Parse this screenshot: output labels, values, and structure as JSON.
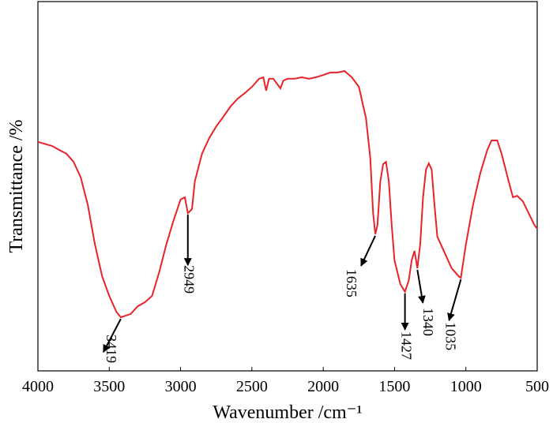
{
  "chart_data": {
    "type": "line",
    "x_label": "Wavenumber /cm⁻¹",
    "y_label": "Transmittance /%",
    "x": [
      4000,
      3900,
      3850,
      3800,
      3750,
      3700,
      3650,
      3600,
      3550,
      3500,
      3450,
      3419,
      3350,
      3300,
      3250,
      3200,
      3150,
      3100,
      3050,
      3000,
      2970,
      2949,
      2920,
      2900,
      2850,
      2800,
      2750,
      2700,
      2650,
      2600,
      2550,
      2500,
      2450,
      2420,
      2400,
      2380,
      2350,
      2300,
      2280,
      2250,
      2200,
      2150,
      2100,
      2050,
      2000,
      1950,
      1900,
      1850,
      1800,
      1750,
      1700,
      1670,
      1650,
      1635,
      1620,
      1600,
      1580,
      1560,
      1540,
      1520,
      1500,
      1460,
      1427,
      1400,
      1380,
      1360,
      1340,
      1320,
      1300,
      1280,
      1260,
      1240,
      1220,
      1200,
      1150,
      1100,
      1050,
      1035,
      1000,
      950,
      900,
      850,
      820,
      780,
      750,
      700,
      670,
      640,
      600,
      560,
      520,
      500
    ],
    "values": [
      62.0,
      60.9,
      59.8,
      58.8,
      56.6,
      52.4,
      44.9,
      34.2,
      25.6,
      20.3,
      16.0,
      14.5,
      15.4,
      17.5,
      18.6,
      20.3,
      26.7,
      34.2,
      40.6,
      46.4,
      47.0,
      42.7,
      43.8,
      51.3,
      58.8,
      63.0,
      66.2,
      68.8,
      71.6,
      73.7,
      75.2,
      76.9,
      79.1,
      79.5,
      75.9,
      79.1,
      79.1,
      76.5,
      78.6,
      79.1,
      79.1,
      79.5,
      79.1,
      79.5,
      80.1,
      80.8,
      80.8,
      81.2,
      79.5,
      76.9,
      68.4,
      57.7,
      42.7,
      37.0,
      39.5,
      51.3,
      56.0,
      56.6,
      51.3,
      39.5,
      29.9,
      23.5,
      21.4,
      24.6,
      29.9,
      32.5,
      27.8,
      34.2,
      47.0,
      54.5,
      56.2,
      54.5,
      44.9,
      36.3,
      32.1,
      27.8,
      25.6,
      25.2,
      34.2,
      44.9,
      53.4,
      59.8,
      62.4,
      62.4,
      58.8,
      51.3,
      47.0,
      47.4,
      45.9,
      42.7,
      39.5,
      38.5
    ],
    "color": "#e8232a",
    "xlim": [
      4000,
      500
    ],
    "xticks": [
      4000,
      3500,
      3000,
      2500,
      2000,
      1500,
      1000,
      500
    ],
    "ylim": [
      0,
      100
    ],
    "annotations": [
      3419,
      2949,
      1635,
      1427,
      1340,
      1035
    ]
  }
}
